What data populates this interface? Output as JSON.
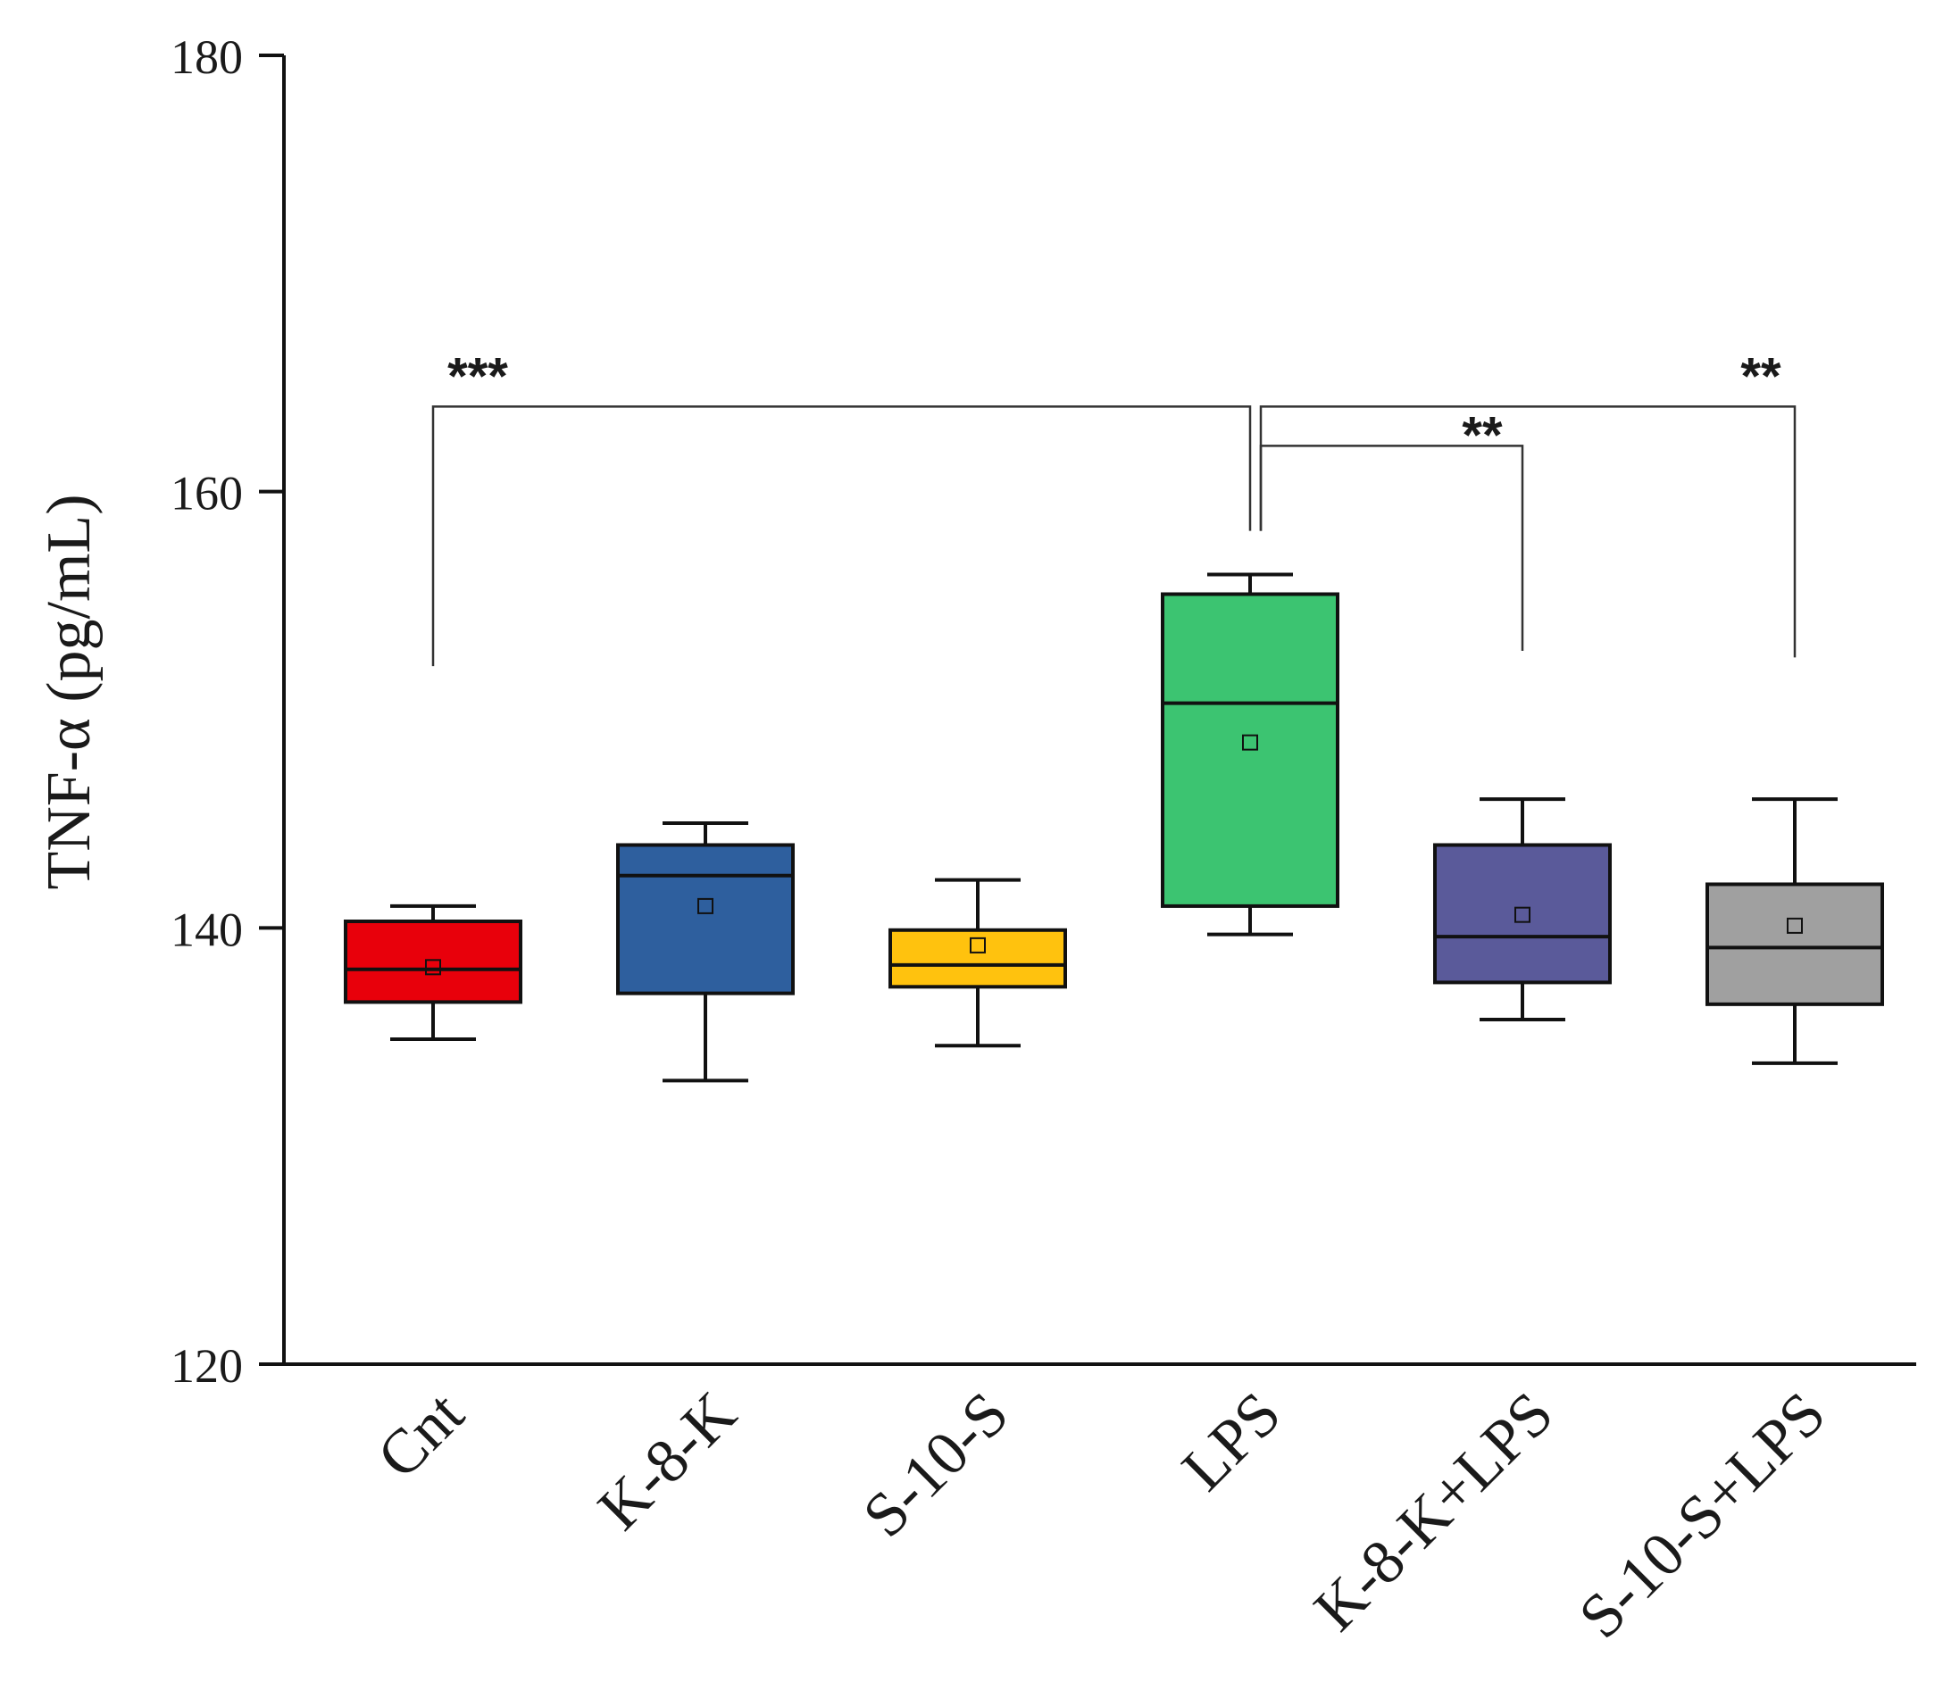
{
  "chart_data": {
    "type": "box",
    "title": "",
    "xlabel": "",
    "ylabel": "TNF-α (pg/mL)",
    "ylim": [
      120,
      180
    ],
    "yticks": [
      120,
      140,
      160,
      180
    ],
    "ytick_labels": [
      "120",
      "140",
      "160",
      "180"
    ],
    "grid": false,
    "legend": "none",
    "categories": [
      "Cnt",
      "K-8-K",
      "S-10-S",
      "LPS",
      "K-8-K+LPS",
      "S-10-S+LPS"
    ],
    "boxes": [
      {
        "name": "Cnt",
        "color": "#e8000b",
        "whisker_low": 134.9,
        "q1": 136.6,
        "median": 138.1,
        "q3": 140.3,
        "whisker_high": 141.0,
        "mean": 138.2
      },
      {
        "name": "K-8-K",
        "color": "#2e5f9e",
        "whisker_low": 133.0,
        "q1": 137.0,
        "median": 142.4,
        "q3": 143.8,
        "whisker_high": 144.8,
        "mean": 141.0
      },
      {
        "name": "S-10-S",
        "color": "#ffc20e",
        "whisker_low": 134.6,
        "q1": 137.3,
        "median": 138.3,
        "q3": 139.9,
        "whisker_high": 142.2,
        "mean": 139.2
      },
      {
        "name": "LPS",
        "color": "#3cc471",
        "whisker_low": 139.7,
        "q1": 141.0,
        "median": 150.3,
        "q3": 155.3,
        "whisker_high": 156.2,
        "mean": 148.5
      },
      {
        "name": "K-8-K+LPS",
        "color": "#5a5a9a",
        "whisker_low": 135.8,
        "q1": 137.5,
        "median": 139.6,
        "q3": 143.8,
        "whisker_high": 145.9,
        "mean": 140.6
      },
      {
        "name": "S-10-S+LPS",
        "color": "#a0a0a0",
        "whisker_low": 133.8,
        "q1": 136.5,
        "median": 139.1,
        "q3": 142.0,
        "whisker_high": 145.9,
        "mean": 140.1
      }
    ],
    "significance": [
      {
        "from": "Cnt",
        "to": "LPS",
        "label": "***",
        "level": 163.9,
        "left_end": 152.0,
        "right_end": 158.2
      },
      {
        "from": "LPS",
        "to": "K-8-K+LPS",
        "label": "**",
        "level": 162.1,
        "left_end": 158.2,
        "right_end": 152.7
      },
      {
        "from": "LPS",
        "to": "S-10-S+LPS",
        "label": "**",
        "level": 163.9,
        "left_end": 158.2,
        "right_end": 152.4
      }
    ]
  }
}
